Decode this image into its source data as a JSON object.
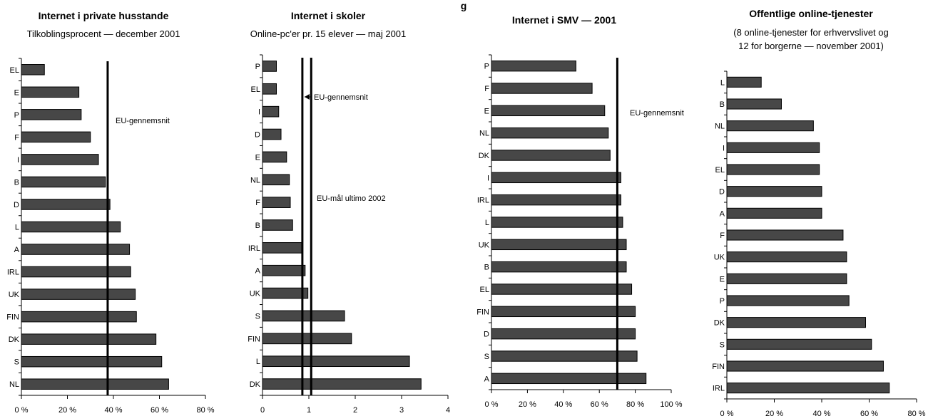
{
  "overall_title": "g",
  "colors": {
    "bar": "#474747",
    "bar_stroke": "#000000",
    "axis": "#000000"
  },
  "chart_data": [
    {
      "type": "bar",
      "orientation": "horizontal",
      "title": "Internet i private husstande",
      "subtitle": [
        "Tilkoblingsprocent — december 2001"
      ],
      "categories": [
        "EL",
        "E",
        "P",
        "F",
        "I",
        "B",
        "D",
        "L",
        "A",
        "IRL",
        "UK",
        "FIN",
        "DK",
        "S",
        "NL"
      ],
      "values": [
        10,
        25,
        26,
        30,
        33.5,
        36.5,
        38.5,
        43,
        47,
        47.5,
        49.5,
        50,
        58.5,
        61,
        64
      ],
      "xlim": [
        0,
        80
      ],
      "xticks": [
        0,
        20,
        40,
        60,
        80
      ],
      "xtick_labels": [
        "0 %",
        "20 %",
        "40 %",
        "60 %",
        "80 %"
      ],
      "reference_lines": [
        {
          "value": 37.5,
          "label": "EU-gennemsnit"
        }
      ]
    },
    {
      "type": "bar",
      "orientation": "horizontal",
      "title": "Internet i skoler",
      "subtitle": [
        "Online-pc'er pr. 15 elever — maj 2001"
      ],
      "categories": [
        "P",
        "EL",
        "I",
        "D",
        "E",
        "NL",
        "F",
        "B",
        "IRL",
        "A",
        "UK",
        "S",
        "FIN",
        "L",
        "DK"
      ],
      "values": [
        0.3,
        0.3,
        0.35,
        0.4,
        0.52,
        0.58,
        0.6,
        0.65,
        0.85,
        0.92,
        0.98,
        1.77,
        1.92,
        3.17,
        3.42
      ],
      "xlim": [
        0,
        4
      ],
      "xticks": [
        0,
        1,
        2,
        3,
        4
      ],
      "xtick_labels": [
        "0",
        "1",
        "2",
        "3",
        "4"
      ],
      "reference_lines": [
        {
          "value": 0.86,
          "label": "EU-gennemsnit"
        },
        {
          "value": 1.05,
          "label": "EU-mål ultimo 2002"
        }
      ]
    },
    {
      "type": "bar",
      "orientation": "horizontal",
      "title": "Internet i SMV — 2001",
      "categories": [
        "P",
        "F",
        "E",
        "NL",
        "DK",
        "I",
        "IRL",
        "L",
        "UK",
        "B",
        "EL",
        "FIN",
        "D",
        "S",
        "A"
      ],
      "values": [
        47,
        56,
        63,
        65,
        66,
        72,
        72,
        73,
        75,
        75,
        78,
        80,
        80,
        81,
        86
      ],
      "xlim": [
        0,
        100
      ],
      "xticks": [
        0,
        20,
        40,
        60,
        80,
        100
      ],
      "xtick_labels": [
        "0 %",
        "20 %",
        "40 %",
        "60 %",
        "80 %",
        "100 %"
      ],
      "reference_lines": [
        {
          "value": 70,
          "label": "EU-gennemsnit"
        }
      ]
    },
    {
      "type": "bar",
      "orientation": "horizontal",
      "title": "Offentlige online-tjenester",
      "subtitle": [
        "(8 online-tjenester for erhvervslivet og",
        "12 for borgerne — november 2001)"
      ],
      "categories": [
        "L",
        "B",
        "NL",
        "I",
        "EL",
        "D",
        "A",
        "F",
        "UK",
        "E",
        "P",
        "DK",
        "S",
        "FIN",
        "IRL"
      ],
      "values": [
        14.5,
        23,
        36.5,
        39,
        39,
        40,
        40,
        49,
        50.5,
        50.5,
        51.5,
        58.5,
        61,
        66,
        68.5
      ],
      "xlim": [
        0,
        80
      ],
      "xticks": [
        0,
        20,
        40,
        60,
        80
      ],
      "xtick_labels": [
        "0 %",
        "20 %",
        "40 %",
        "60 %",
        "80 %"
      ],
      "reference_lines": []
    }
  ]
}
